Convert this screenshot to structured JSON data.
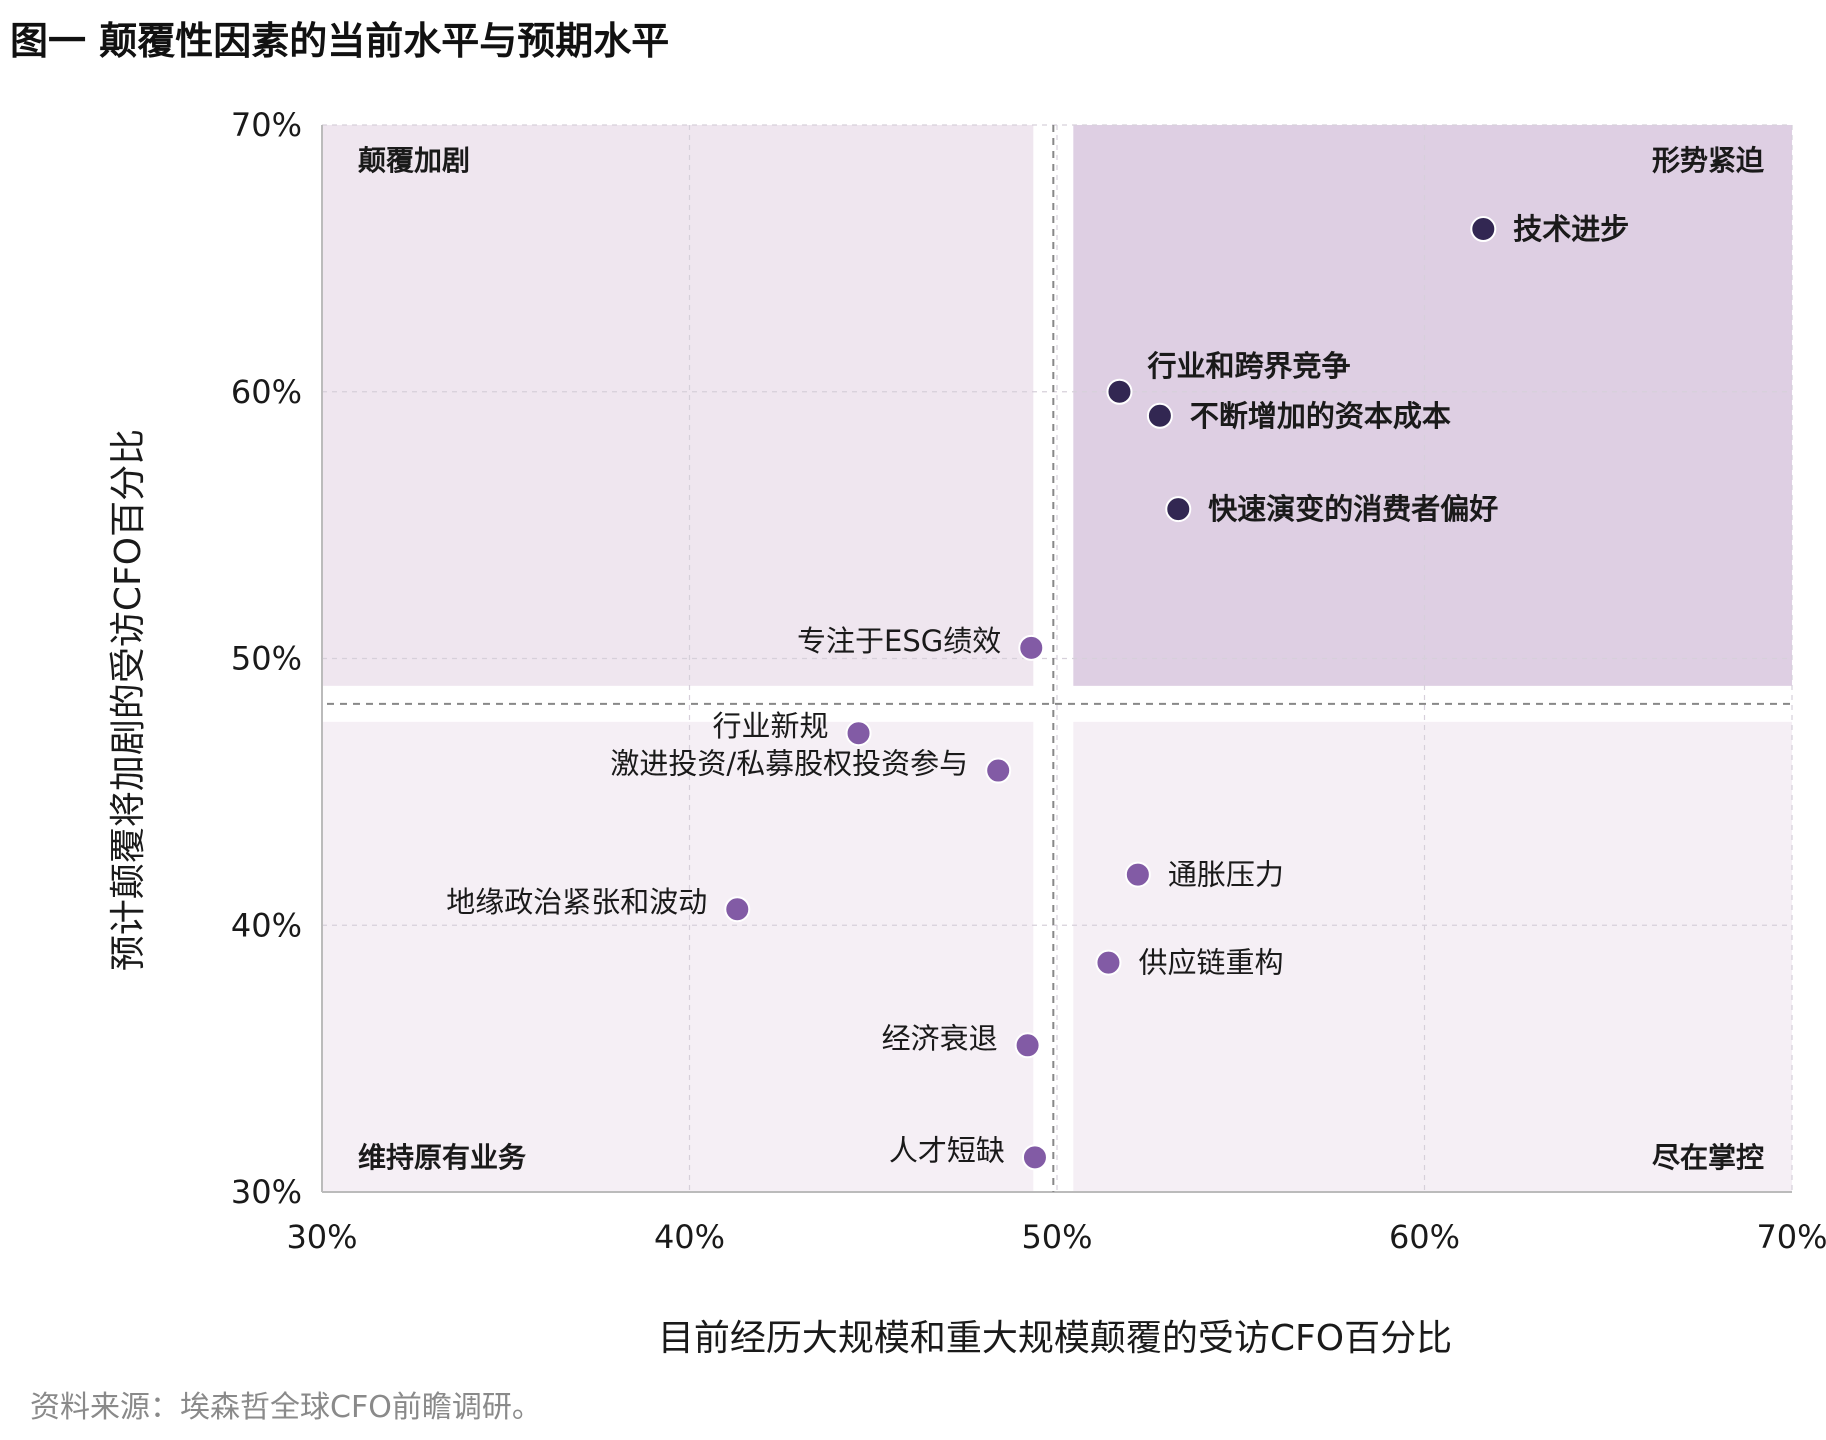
{
  "chart_data": {
    "type": "scatter",
    "title": "图一 颠覆性因素的当前水平与预期水平",
    "xlabel": "目前经历大规模和重大规模颠覆的受访CFO百分比",
    "ylabel": "预计颠覆将加剧的受访CFO百分比",
    "xlim": [
      30,
      70
    ],
    "ylim": [
      30,
      70
    ],
    "x_ticks": [
      30,
      40,
      50,
      60,
      70
    ],
    "y_ticks": [
      30,
      40,
      50,
      60,
      70
    ],
    "x_tick_labels": [
      "30%",
      "40%",
      "50%",
      "60%",
      "70%"
    ],
    "y_tick_labels": [
      "30%",
      "40%",
      "50%",
      "60%",
      "70%"
    ],
    "divider": {
      "x": 49.9,
      "y": 48.3
    },
    "grid": true,
    "quadrants": {
      "top_left": "颠覆加剧",
      "top_right": "形势紧迫",
      "bottom_left": "维持原有业务",
      "bottom_right": "尽在掌控"
    },
    "points": [
      {
        "label": "技术进步",
        "x": 61.6,
        "y": 66.1,
        "group": "dark",
        "label_side": "right",
        "bold": true
      },
      {
        "label": "行业和跨界竞争",
        "x": 51.7,
        "y": 60.0,
        "group": "dark",
        "label_side": "above-right",
        "bold": true
      },
      {
        "label": "不断增加的资本成本",
        "x": 52.8,
        "y": 59.1,
        "group": "dark",
        "label_side": "right",
        "bold": true
      },
      {
        "label": "快速演变的消费者偏好",
        "x": 53.3,
        "y": 55.6,
        "group": "dark",
        "label_side": "right",
        "bold": true
      },
      {
        "label": "专注于ESG绩效",
        "x": 49.3,
        "y": 50.4,
        "group": "light",
        "label_side": "left",
        "bold": false
      },
      {
        "label": "行业新规",
        "x": 44.6,
        "y": 47.2,
        "group": "light",
        "label_side": "left",
        "bold": false
      },
      {
        "label": "激进投资/私募股权投资参与",
        "x": 48.4,
        "y": 45.8,
        "group": "light",
        "label_side": "left",
        "bold": false
      },
      {
        "label": "通胀压力",
        "x": 52.2,
        "y": 41.9,
        "group": "light",
        "label_side": "right",
        "bold": false
      },
      {
        "label": "地缘政治紧张和波动",
        "x": 41.3,
        "y": 40.6,
        "group": "light",
        "label_side": "left",
        "bold": false
      },
      {
        "label": "供应链重构",
        "x": 51.4,
        "y": 38.6,
        "group": "light",
        "label_side": "right",
        "bold": false
      },
      {
        "label": "经济衰退",
        "x": 49.2,
        "y": 35.5,
        "group": "light",
        "label_side": "left",
        "bold": false
      },
      {
        "label": "人才短缺",
        "x": 49.4,
        "y": 31.3,
        "group": "light",
        "label_side": "left",
        "bold": false
      }
    ],
    "colors": {
      "dark_point": "#322752",
      "light_point": "#825ba5",
      "quadrant_top_left": "#efe6ef",
      "quadrant_top_right": "#decfe3",
      "quadrant_bottom": "#f5eff5",
      "divider": "#888888",
      "grid": "#d6d0da",
      "axis": "#bbbbbb"
    }
  },
  "source": "资料来源：埃森哲全球CFO前瞻调研。"
}
